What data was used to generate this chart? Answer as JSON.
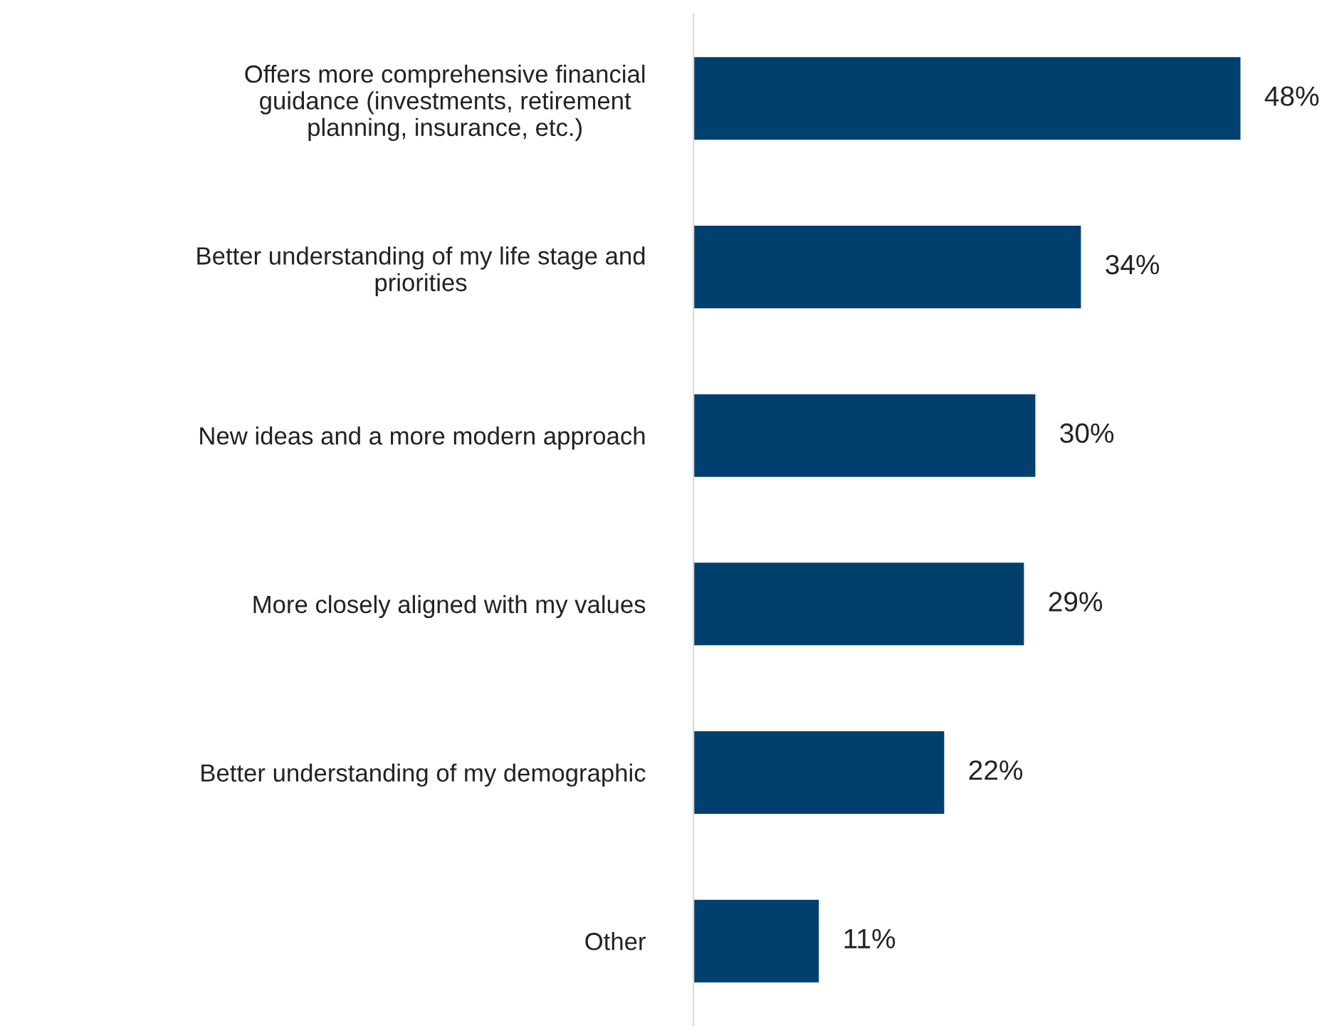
{
  "chart_data": {
    "type": "bar",
    "orientation": "horizontal",
    "categories": [
      "Offers more comprehensive financial\nguidance (investments, retirement\nplanning, insurance, etc.)",
      "Better understanding of my life stage and\npriorities",
      "New ideas and a more modern approach",
      "More closely aligned with my values",
      "Better understanding of my demographic",
      "Other"
    ],
    "values": [
      48,
      34,
      30,
      29,
      22,
      11
    ],
    "value_labels": [
      "48%",
      "34%",
      "30%",
      "29%",
      "22%",
      "11%"
    ],
    "color": "#003f6e",
    "grid": false,
    "legend": false
  }
}
